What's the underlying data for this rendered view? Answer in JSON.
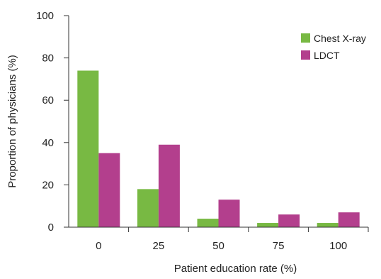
{
  "chart_data": {
    "type": "bar",
    "title": "",
    "xlabel": "Patient education rate (%)",
    "ylabel": "Proportion of physicians (%)",
    "categories": [
      "0",
      "25",
      "50",
      "75",
      "100"
    ],
    "series": [
      {
        "name": "Chest X-ray",
        "color": "#78b943",
        "values": [
          74,
          18,
          4,
          2,
          2
        ]
      },
      {
        "name": "LDCT",
        "color": "#b33f8d",
        "values": [
          35,
          39,
          13,
          6,
          7
        ]
      }
    ],
    "ylim": [
      0,
      100
    ],
    "yticks": [
      "0",
      "20",
      "40",
      "60",
      "80",
      "100"
    ],
    "grid": false,
    "legend_position": "top-right"
  }
}
